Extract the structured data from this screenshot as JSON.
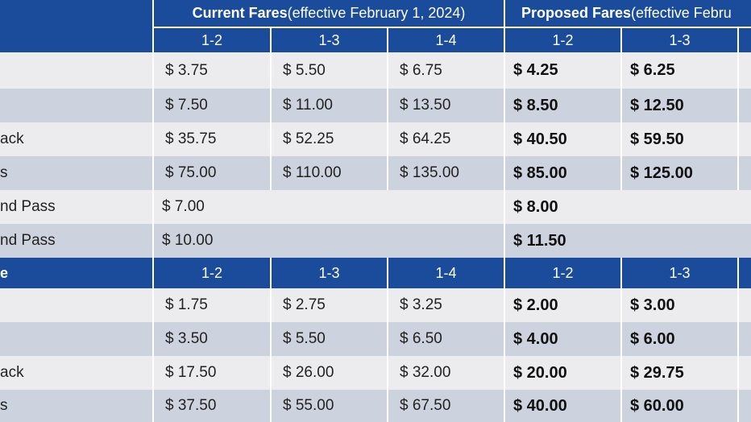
{
  "header": {
    "current_title_bold": "Current Fares",
    "current_title_rest": " (effective February 1, 2024)",
    "proposed_title_bold": "Proposed Fares",
    "proposed_title_rest": " (effective Febru",
    "zones": [
      "1-2",
      "1-3",
      "1-4",
      "1-2",
      "1-3"
    ]
  },
  "section1_rows": [
    {
      "label": "",
      "current": [
        "$ 3.75",
        "$ 5.50",
        "$ 6.75"
      ],
      "proposed": [
        "$ 4.25",
        "$ 6.25"
      ]
    },
    {
      "label": "",
      "current": [
        "$ 7.50",
        "$ 11.00",
        "$ 13.50"
      ],
      "proposed": [
        "$ 8.50",
        "$ 12.50"
      ]
    },
    {
      "label": "ack",
      "current": [
        "$ 35.75",
        "$ 52.25",
        "$ 64.25"
      ],
      "proposed": [
        "$ 40.50",
        "$ 59.50"
      ]
    },
    {
      "label": "s",
      "current": [
        "$ 75.00",
        "$ 110.00",
        "$ 135.00"
      ],
      "proposed": [
        "$ 85.00",
        "$ 125.00"
      ]
    }
  ],
  "weekend_rows": [
    {
      "label": "nd Pass",
      "current": "$ 7.00",
      "proposed": "$ 8.00"
    },
    {
      "label": "nd Pass",
      "current": "$ 10.00",
      "proposed": "$ 11.50"
    }
  ],
  "section2_header": {
    "label": "e",
    "zones": [
      "1-2",
      "1-3",
      "1-4",
      "1-2",
      "1-3"
    ]
  },
  "section2_rows": [
    {
      "label": "",
      "current": [
        "$ 1.75",
        "$ 2.75",
        "$ 3.25"
      ],
      "proposed": [
        "$ 2.00",
        "$ 3.00"
      ]
    },
    {
      "label": "",
      "current": [
        "$ 3.50",
        "$ 5.50",
        "$ 6.50"
      ],
      "proposed": [
        "$ 4.00",
        "$ 6.00"
      ]
    },
    {
      "label": "ack",
      "current": [
        "$ 17.50",
        "$ 26.00",
        "$ 32.00"
      ],
      "proposed": [
        "$ 20.00",
        "$ 29.75"
      ]
    },
    {
      "label": "s",
      "current": [
        "$ 37.50",
        "$ 55.00",
        "$ 67.50"
      ],
      "proposed": [
        "$ 40.00",
        "$ 60.00"
      ]
    }
  ],
  "colors": {
    "header_blue": "#1b4c9c",
    "row_light": "#ececef",
    "row_dark": "#cdd3de"
  }
}
